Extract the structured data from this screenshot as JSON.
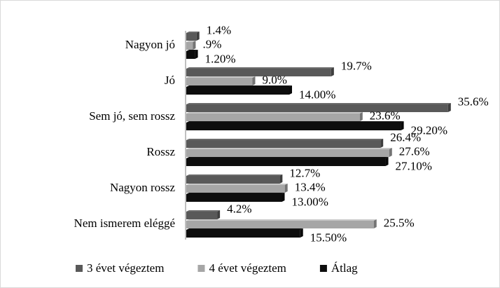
{
  "chart_data": {
    "type": "hbar",
    "categories": [
      "Nagyon jó",
      "Jó",
      "Sem jó, sem rossz",
      "Rossz",
      "Nagyon rossz",
      "Nem ismerem eléggé"
    ],
    "series": [
      {
        "name": "3 évet végeztem",
        "color": "#595959",
        "values": [
          1.4,
          19.7,
          35.6,
          26.4,
          12.7,
          4.2
        ],
        "value_labels": [
          "1.4%",
          "19.7%",
          "35.6%",
          "26.4%",
          "12.7%",
          "4.2%"
        ]
      },
      {
        "name": "4 évet végeztem",
        "color": "#a6a6a6",
        "values": [
          0.9,
          9.0,
          23.6,
          27.6,
          13.4,
          25.5
        ],
        "value_labels": [
          ".9%",
          "9.0%",
          "23.6%",
          "27.6%",
          "13.4%",
          "25.5%"
        ]
      },
      {
        "name": "Átlag",
        "color": "#0d0d0d",
        "values": [
          1.2,
          14.0,
          29.2,
          27.1,
          13.0,
          15.5
        ],
        "value_labels": [
          "1.20%",
          "14.00%",
          "29.20%",
          "27.10%",
          "13.00%",
          "15.50%"
        ]
      }
    ],
    "legend": "bottom"
  }
}
